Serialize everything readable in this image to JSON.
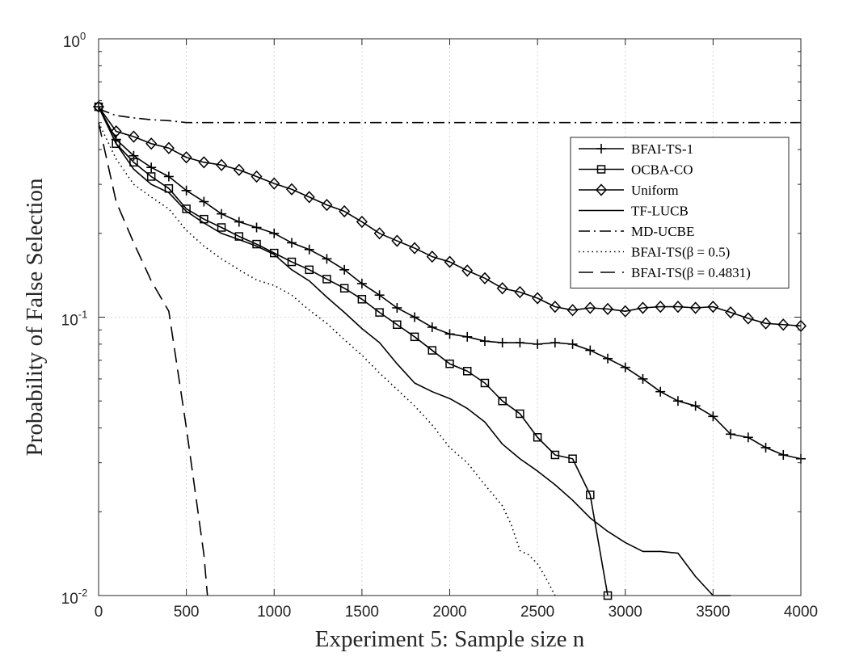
{
  "chart_data": {
    "type": "line",
    "xlabel": "Experiment 5: Sample size n",
    "ylabel": "Probability of False Selection",
    "xlim": [
      0,
      4000
    ],
    "ylim": [
      0.01,
      1
    ],
    "yscale": "log",
    "grid": true,
    "legend_position": "top-right",
    "x_ticks": [
      0,
      500,
      1000,
      1500,
      2000,
      2500,
      3000,
      3500,
      4000
    ],
    "x_tick_labels": [
      "0",
      "500",
      "1000",
      "1500",
      "2000",
      "2500",
      "3000",
      "3500",
      "4000"
    ],
    "y_ticks": [
      0.01,
      0.1,
      1
    ],
    "y_tick_labels": [
      {
        "base": "10",
        "exp": "-2"
      },
      {
        "base": "10",
        "exp": "-1"
      },
      {
        "base": "10",
        "exp": "0"
      }
    ],
    "series": [
      {
        "name": "BFAI-TS-1",
        "style": "solid",
        "marker": "plus",
        "x": [
          0,
          100,
          200,
          300,
          400,
          500,
          600,
          700,
          800,
          900,
          1000,
          1100,
          1200,
          1300,
          1400,
          1500,
          1600,
          1700,
          1800,
          1900,
          2000,
          2100,
          2200,
          2300,
          2400,
          2500,
          2600,
          2700,
          2800,
          2900,
          3000,
          3100,
          3200,
          3300,
          3400,
          3500,
          3600,
          3700,
          3800,
          3900,
          4000
        ],
        "y": [
          0.57,
          0.435,
          0.38,
          0.345,
          0.32,
          0.285,
          0.26,
          0.235,
          0.22,
          0.21,
          0.2,
          0.185,
          0.175,
          0.162,
          0.148,
          0.132,
          0.12,
          0.108,
          0.1,
          0.092,
          0.087,
          0.085,
          0.082,
          0.081,
          0.081,
          0.08,
          0.081,
          0.08,
          0.076,
          0.071,
          0.066,
          0.06,
          0.054,
          0.05,
          0.048,
          0.044,
          0.038,
          0.037,
          0.034,
          0.032,
          0.031
        ]
      },
      {
        "name": "OCBA-CO",
        "style": "solid",
        "marker": "square",
        "x": [
          0,
          100,
          200,
          300,
          400,
          500,
          600,
          700,
          800,
          900,
          1000,
          1100,
          1200,
          1300,
          1400,
          1500,
          1600,
          1700,
          1800,
          1900,
          2000,
          2100,
          2200,
          2300,
          2400,
          2500,
          2600,
          2700,
          2800,
          2900
        ],
        "y": [
          0.57,
          0.42,
          0.36,
          0.32,
          0.29,
          0.245,
          0.225,
          0.21,
          0.195,
          0.183,
          0.17,
          0.158,
          0.148,
          0.137,
          0.127,
          0.116,
          0.104,
          0.094,
          0.085,
          0.076,
          0.068,
          0.064,
          0.058,
          0.05,
          0.045,
          0.037,
          0.032,
          0.031,
          0.023,
          0.01
        ]
      },
      {
        "name": "Uniform",
        "style": "solid",
        "marker": "diamond",
        "x": [
          0,
          100,
          200,
          300,
          400,
          500,
          600,
          700,
          800,
          900,
          1000,
          1100,
          1200,
          1300,
          1400,
          1500,
          1600,
          1700,
          1800,
          1900,
          2000,
          2100,
          2200,
          2300,
          2400,
          2500,
          2600,
          2700,
          2800,
          2900,
          3000,
          3100,
          3200,
          3300,
          3400,
          3500,
          3600,
          3700,
          3800,
          3900,
          4000
        ],
        "y": [
          0.57,
          0.465,
          0.445,
          0.42,
          0.405,
          0.375,
          0.36,
          0.352,
          0.338,
          0.32,
          0.302,
          0.288,
          0.27,
          0.253,
          0.24,
          0.22,
          0.2,
          0.188,
          0.177,
          0.165,
          0.158,
          0.147,
          0.138,
          0.127,
          0.123,
          0.117,
          0.109,
          0.106,
          0.108,
          0.107,
          0.105,
          0.108,
          0.109,
          0.109,
          0.108,
          0.109,
          0.104,
          0.099,
          0.095,
          0.094,
          0.093
        ]
      },
      {
        "name": "TF-LUCB",
        "style": "solid",
        "marker": "none",
        "x": [
          0,
          100,
          200,
          300,
          400,
          500,
          600,
          700,
          800,
          900,
          1000,
          1100,
          1200,
          1300,
          1400,
          1500,
          1600,
          1700,
          1800,
          1900,
          2000,
          2100,
          2200,
          2300,
          2400,
          2500,
          2600,
          2700,
          2800,
          2900,
          3000,
          3100,
          3200,
          3300,
          3400,
          3500,
          3600
        ],
        "y": [
          0.57,
          0.42,
          0.34,
          0.3,
          0.28,
          0.24,
          0.218,
          0.2,
          0.19,
          0.18,
          0.168,
          0.148,
          0.135,
          0.118,
          0.104,
          0.091,
          0.081,
          0.068,
          0.058,
          0.054,
          0.051,
          0.047,
          0.042,
          0.035,
          0.031,
          0.028,
          0.025,
          0.022,
          0.019,
          0.017,
          0.0155,
          0.0144,
          0.0144,
          0.0142,
          0.0117,
          0.01,
          0.01
        ]
      },
      {
        "name": "MD-UCBE",
        "style": "dashdot",
        "marker": "none",
        "x": [
          0,
          100,
          200,
          300,
          400,
          500,
          700,
          1000,
          1500,
          2000,
          2500,
          3000,
          3500,
          4000
        ],
        "y": [
          0.56,
          0.53,
          0.52,
          0.512,
          0.508,
          0.5,
          0.5,
          0.5,
          0.5,
          0.5,
          0.5,
          0.5,
          0.5,
          0.5
        ]
      },
      {
        "name": "BFAI-TS(β = 0.5)",
        "style": "dotted",
        "marker": "none",
        "x": [
          0,
          100,
          200,
          300,
          400,
          500,
          600,
          700,
          800,
          900,
          1000,
          1100,
          1200,
          1300,
          1400,
          1500,
          1600,
          1700,
          1800,
          1900,
          2000,
          2100,
          2200,
          2300,
          2350,
          2400,
          2450,
          2500,
          2550,
          2600
        ],
        "y": [
          0.5,
          0.37,
          0.3,
          0.27,
          0.245,
          0.205,
          0.18,
          0.162,
          0.148,
          0.136,
          0.13,
          0.12,
          0.106,
          0.095,
          0.083,
          0.073,
          0.063,
          0.055,
          0.048,
          0.041,
          0.034,
          0.03,
          0.025,
          0.021,
          0.018,
          0.0145,
          0.014,
          0.013,
          0.0115,
          0.01
        ]
      },
      {
        "name": "BFAI-TS(β = 0.4831)",
        "style": "dashed",
        "marker": "none",
        "x": [
          0,
          100,
          200,
          300,
          400,
          500,
          600,
          620
        ],
        "y": [
          0.5,
          0.26,
          0.185,
          0.135,
          0.105,
          0.04,
          0.014,
          0.01
        ]
      }
    ]
  }
}
